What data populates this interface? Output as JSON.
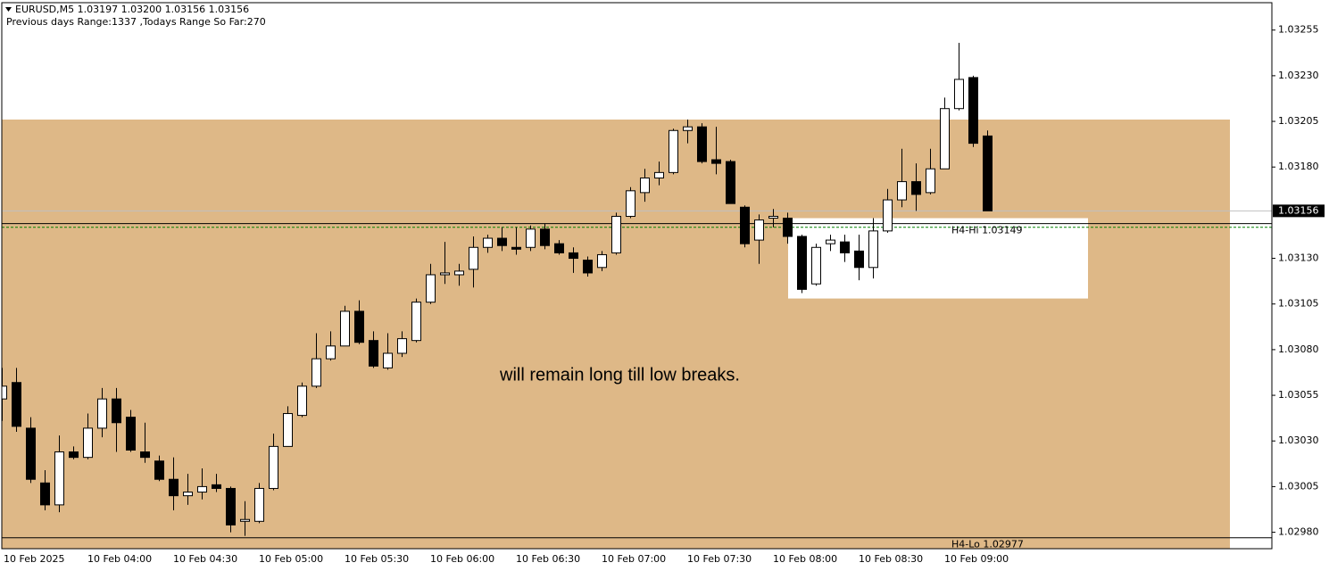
{
  "chart_data": {
    "type": "candlestick",
    "title": "EURUSD,M5  1.03197 1.03200 1.03156 1.03156",
    "subtitle": "Previous days Range:1337   ,Todays Range So Far:270",
    "categories": [
      "10 Feb 2025",
      null,
      null,
      null,
      null,
      null,
      "10 Feb 04:00",
      null,
      null,
      null,
      null,
      null,
      "10 Feb 04:30",
      null,
      null,
      null,
      null,
      null,
      "10 Feb 05:00",
      null,
      null,
      null,
      null,
      null,
      "10 Feb 05:30",
      null,
      null,
      null,
      null,
      null,
      "10 Feb 06:00",
      null,
      null,
      null,
      null,
      null,
      "10 Feb 06:30",
      null,
      null,
      null,
      null,
      null,
      "10 Feb 07:00",
      null,
      null,
      null,
      null,
      null,
      "10 Feb 07:30",
      null,
      null,
      null,
      null,
      null,
      "10 Feb 08:00",
      null,
      null,
      null,
      null,
      null,
      "10 Feb 08:30",
      null,
      null,
      null,
      null,
      null,
      "10 Feb 09:00",
      null,
      null,
      null
    ],
    "open": [
      1.03053,
      1.03062,
      1.03037,
      1.03007,
      1.02995,
      1.03024,
      1.03021,
      1.03037,
      1.03053,
      1.03043,
      1.03024,
      1.03019,
      1.03009,
      1.03,
      1.03002,
      1.03006,
      1.03004,
      1.02986,
      1.02986,
      1.03004,
      1.03027,
      1.03044,
      1.0306,
      1.03075,
      1.03082,
      1.03101,
      1.03085,
      1.0307,
      1.03078,
      1.03085,
      1.03106,
      1.03121,
      1.03121,
      1.03124,
      1.03136,
      1.03141,
      1.03136,
      1.03136,
      1.03146,
      1.03138,
      1.03133,
      1.03129,
      1.03125,
      1.03133,
      1.03153,
      1.03166,
      1.03174,
      1.03177,
      1.032,
      1.03202,
      1.03184,
      1.03183,
      1.03158,
      1.0314,
      1.03152,
      1.03152,
      1.03142,
      1.03116,
      1.03138,
      1.03139,
      1.03134,
      1.03125,
      1.03145,
      1.03162,
      1.03172,
      1.03166,
      1.03179,
      1.03212,
      1.03229,
      1.03197
    ],
    "high": [
      1.0307,
      1.0307,
      1.03043,
      1.03014,
      1.03033,
      1.03027,
      1.03045,
      1.03059,
      1.03059,
      1.03047,
      1.0304,
      1.03022,
      1.03021,
      1.03012,
      1.03015,
      1.03012,
      1.03005,
      1.02997,
      1.03007,
      1.03034,
      1.03049,
      1.03062,
      1.03089,
      1.0309,
      1.03104,
      1.03107,
      1.0309,
      1.03089,
      1.0309,
      1.03108,
      1.03127,
      1.03139,
      1.03127,
      1.03142,
      1.03143,
      1.03147,
      1.03147,
      1.03148,
      1.03149,
      1.0314,
      1.03136,
      1.03131,
      1.03134,
      1.03155,
      1.03169,
      1.03179,
      1.03183,
      1.03201,
      1.03206,
      1.03204,
      1.03202,
      1.03184,
      1.03159,
      1.03154,
      1.03157,
      1.03155,
      1.03143,
      1.03138,
      1.03143,
      1.03143,
      1.03143,
      1.03152,
      1.03168,
      1.0319,
      1.03182,
      1.0319,
      1.03218,
      1.03248,
      1.0323,
      1.032
    ],
    "low": [
      1.03041,
      1.03035,
      1.03007,
      1.02992,
      1.02991,
      1.0302,
      1.0302,
      1.03032,
      1.03024,
      1.03024,
      1.03018,
      1.03008,
      1.02992,
      1.02995,
      1.02998,
      1.03002,
      1.0298,
      1.02978,
      1.02985,
      1.03003,
      1.03027,
      1.03043,
      1.03059,
      1.03074,
      1.03082,
      1.03083,
      1.0307,
      1.03069,
      1.03076,
      1.03084,
      1.03105,
      1.03116,
      1.03115,
      1.03114,
      1.03133,
      1.03134,
      1.03132,
      1.03134,
      1.03135,
      1.03132,
      1.03122,
      1.0312,
      1.03123,
      1.03132,
      1.03152,
      1.03161,
      1.0317,
      1.03176,
      1.03193,
      1.03182,
      1.03176,
      1.0316,
      1.03136,
      1.03127,
      1.03147,
      1.03138,
      1.03111,
      1.03115,
      1.03134,
      1.03128,
      1.03118,
      1.03119,
      1.03144,
      1.03158,
      1.03156,
      1.03165,
      1.03179,
      1.03211,
      1.03191,
      1.03156
    ],
    "close": [
      1.0306,
      1.03038,
      1.03009,
      1.02995,
      1.03024,
      1.03021,
      1.03037,
      1.03053,
      1.0304,
      1.03025,
      1.03021,
      1.03009,
      1.03,
      1.03002,
      1.03005,
      1.03004,
      1.02984,
      1.02987,
      1.03004,
      1.03027,
      1.03045,
      1.0306,
      1.03075,
      1.03082,
      1.03101,
      1.03084,
      1.03071,
      1.03078,
      1.03086,
      1.03106,
      1.03121,
      1.03122,
      1.03123,
      1.03136,
      1.03141,
      1.03137,
      1.03135,
      1.03146,
      1.03137,
      1.03133,
      1.0313,
      1.03122,
      1.03132,
      1.03153,
      1.03167,
      1.03174,
      1.03177,
      1.032,
      1.03202,
      1.03183,
      1.03182,
      1.0316,
      1.03138,
      1.03151,
      1.03153,
      1.03142,
      1.03113,
      1.03136,
      1.0314,
      1.03133,
      1.03125,
      1.03145,
      1.03162,
      1.03172,
      1.03165,
      1.03179,
      1.03212,
      1.03228,
      1.03193,
      1.03156
    ],
    "up_color": "#ffffff",
    "down_color": "#000000",
    "ylim": [
      1.02971,
      1.0327
    ],
    "yticks": [
      1.03255,
      {
        "value": 1.0323,
        "label": "1.03230"
      },
      1.03205,
      {
        "value": 1.0318,
        "label": "1.03180"
      },
      {
        "value": 1.0313,
        "label": "1.03130"
      },
      1.03105,
      {
        "value": 1.0308,
        "label": "1.03080"
      },
      1.03055,
      {
        "value": 1.0303,
        "label": "1.03030"
      },
      1.03005,
      {
        "value": 1.0298,
        "label": "1.02980"
      }
    ],
    "last_price": 1.03156,
    "zones": [
      {
        "top": 1.03206,
        "bottom": 1.02971,
        "color": "#deb887"
      },
      {
        "top": 1.03152,
        "bottom": 1.03108,
        "color": "#ffffff"
      }
    ],
    "levels": [
      {
        "value": 1.03149,
        "label": "H4-Hi 1.03149",
        "color": "#000000"
      },
      {
        "value": 1.03147,
        "color": "#008000",
        "style": "dashed"
      },
      {
        "value": 1.02977,
        "label": "H4-Lo 1.02977",
        "color": "#000000"
      }
    ],
    "annotation": "will remain long till low breaks."
  }
}
